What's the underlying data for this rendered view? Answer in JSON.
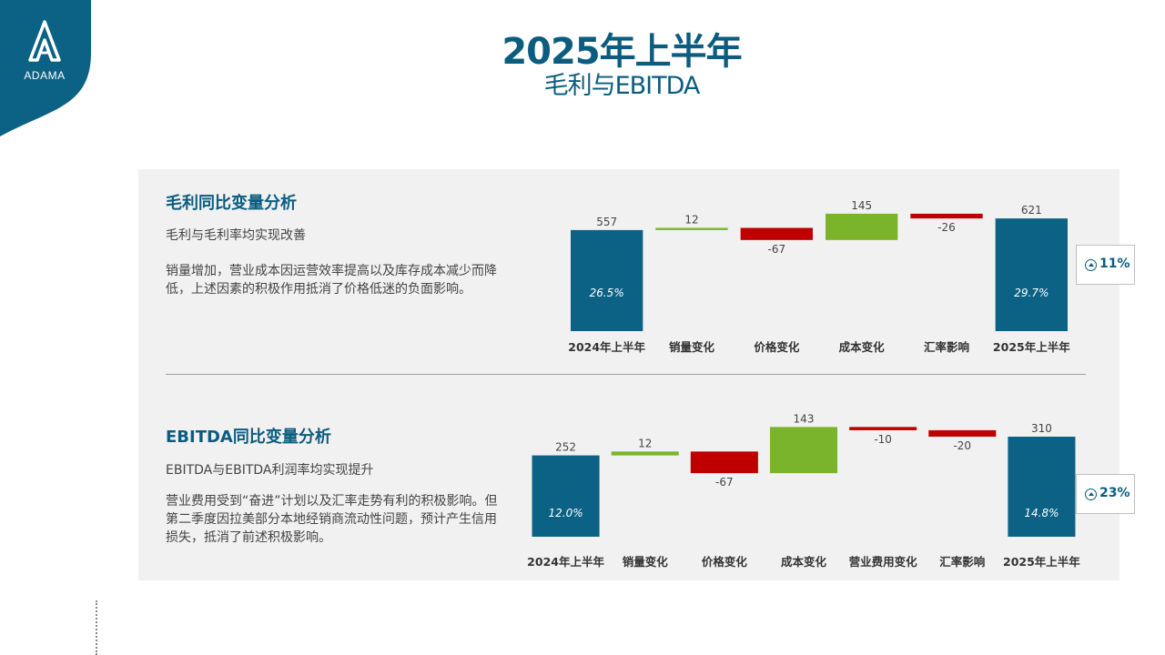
{
  "brand": {
    "logo_text": "ADAMA",
    "color": "#0b5c7f"
  },
  "title": {
    "main": "2025年上半年",
    "sub": "毛利与EBITDA"
  },
  "colors": {
    "total": "#0b6284",
    "increase": "#7ab42a",
    "decrease": "#c00000"
  },
  "sections": [
    {
      "heading": "毛利同比变量分析",
      "subheading": "毛利与毛利率均实现改善",
      "body": "销量增加，营业成本因运营效率提高以及库存成本减少而降低，上述因素的积极作用抵消了价格低迷的负面影响。",
      "growth": "11%"
    },
    {
      "heading": "EBITDA同比变量分析",
      "subheading": "EBITDA与EBITDA利润率均实现提升",
      "body": "营业费用受到“奋进”计划以及汇率走势有利的积极影响。但第二季度因拉美部分本地经销商流动性问题，预计产生信用损失，抵消了前述积极影响。",
      "growth": "23%"
    }
  ],
  "chart_data": [
    {
      "type": "bar",
      "subtype": "waterfall",
      "categories": [
        "2024年上半年",
        "销量变化",
        "价格变化",
        "成本变化",
        "汇率影响",
        "2025年上半年"
      ],
      "values": [
        557,
        12,
        -67,
        145,
        -26,
        621
      ],
      "value_labels": [
        "557",
        "12",
        "-67",
        "145",
        "-26",
        "621"
      ],
      "kinds": [
        "total",
        "delta",
        "delta",
        "delta",
        "delta",
        "total"
      ],
      "total_margins": [
        "26.5%",
        "",
        "",
        "",
        "",
        "29.7%"
      ]
    },
    {
      "type": "bar",
      "subtype": "waterfall",
      "categories": [
        "2024年上半年",
        "销量变化",
        "价格变化",
        "成本变化",
        "营业费用变化",
        "汇率影响",
        "2025年上半年"
      ],
      "values": [
        252,
        12,
        -67,
        143,
        -10,
        -20,
        310
      ],
      "value_labels": [
        "252",
        "12",
        "-67",
        "143",
        "-10",
        "-20",
        "310"
      ],
      "kinds": [
        "total",
        "delta",
        "delta",
        "delta",
        "delta",
        "delta",
        "total"
      ],
      "total_margins": [
        "12.0%",
        "",
        "",
        "",
        "",
        "",
        "14.8%"
      ]
    }
  ]
}
